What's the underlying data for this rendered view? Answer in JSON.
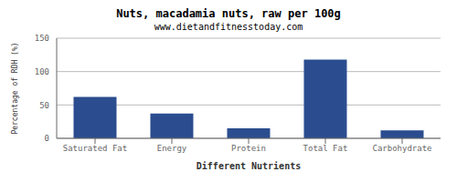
{
  "chart_data": {
    "type": "bar",
    "title": "Nuts, macadamia nuts, raw per 100g",
    "subtitle": "www.dietandfitnesstoday.com",
    "xlabel": "Different Nutrients",
    "ylabel": "Percentage of RDH (%)",
    "categories": [
      "Saturated Fat",
      "Energy",
      "Protein",
      "Total Fat",
      "Carbohydrate"
    ],
    "values": [
      62,
      37,
      15,
      118,
      12
    ],
    "color": "#2b4d8f",
    "ylim": [
      0,
      150
    ],
    "yticks": [
      0,
      50,
      100,
      150
    ],
    "grid": true
  }
}
